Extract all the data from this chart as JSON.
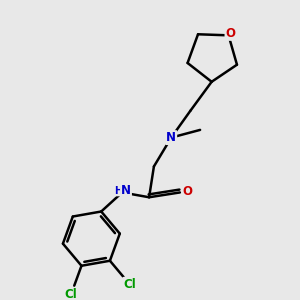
{
  "background_color": "#e8e8e8",
  "bond_color": "#000000",
  "bond_width": 1.8,
  "font_size_atoms": 8.5,
  "fig_width": 3.0,
  "fig_height": 3.0,
  "dpi": 100,
  "colors": {
    "O": "#cc0000",
    "N": "#0000cc",
    "Cl": "#009900",
    "C": "#000000",
    "bg": "#e8e8e8"
  }
}
